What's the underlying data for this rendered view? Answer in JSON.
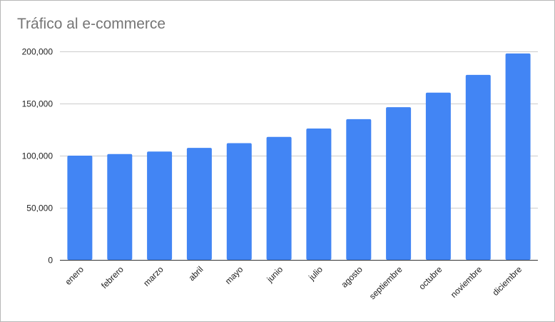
{
  "chart_data": {
    "type": "bar",
    "title": "Tráfico al e-commerce",
    "xlabel": "",
    "ylabel": "",
    "categories": [
      "enero",
      "febrero",
      "marzo",
      "abril",
      "mayo",
      "junio",
      "julio",
      "agosto",
      "septiembre",
      "octubre",
      "noviembre",
      "diciembre"
    ],
    "values": [
      100000,
      101500,
      104000,
      107500,
      112000,
      118000,
      126000,
      135000,
      146500,
      160500,
      177500,
      198000
    ],
    "ylim": [
      0,
      200000
    ],
    "yticks": [
      0,
      50000,
      100000,
      150000,
      200000
    ],
    "ytick_labels": [
      "0",
      "50,000",
      "100,000",
      "150,000",
      "200,000"
    ],
    "grid": true,
    "legend": "none",
    "bar_color": "#4285f4",
    "grid_color": "#cccccc"
  }
}
